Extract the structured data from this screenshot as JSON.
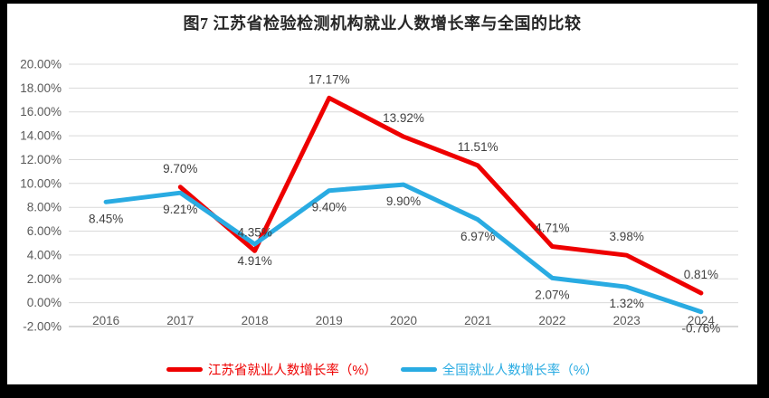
{
  "title": "图7  江苏省检验检测机构就业人数增长率与全国的比较",
  "colors": {
    "background": "#ffffff",
    "frame": "#000000",
    "gridline": "#D9D9D9",
    "axis_line": "#BFBFBF",
    "tick_label": "#595959",
    "data_label": "#3F3F3F",
    "jiangsu_red": "#EE0000",
    "national_blue": "#29ABE2"
  },
  "chart_data": {
    "type": "line",
    "title": "图7  江苏省检验检测机构就业人数增长率与全国的比较",
    "categories": [
      "2016",
      "2017",
      "2018",
      "2019",
      "2020",
      "2021",
      "2022",
      "2023",
      "2024"
    ],
    "series": [
      {
        "name": "江苏省就业人数增长率（%）",
        "color": "#EE0000",
        "values": [
          null,
          9.7,
          4.35,
          17.17,
          13.92,
          11.51,
          4.71,
          3.98,
          0.81
        ],
        "labels": [
          "",
          "9.70%",
          "4.35%",
          "17.17%",
          "13.92%",
          "11.51%",
          "4.71%",
          "3.98%",
          "0.81%"
        ],
        "label_side": "above"
      },
      {
        "name": "全国就业人数增长率（%）",
        "color": "#29ABE2",
        "values": [
          8.45,
          9.21,
          4.91,
          9.4,
          9.9,
          6.97,
          2.07,
          1.32,
          -0.76
        ],
        "labels": [
          "8.45%",
          "9.21%",
          "4.91%",
          "9.40%",
          "9.90%",
          "6.97%",
          "2.07%",
          "1.32%",
          "-0.76%"
        ],
        "label_side": "below"
      }
    ],
    "xlabel": "",
    "ylabel": "",
    "y_axis": {
      "min": -2,
      "max": 20,
      "step": 2,
      "tick_labels": [
        "20.00%",
        "18.00%",
        "16.00%",
        "14.00%",
        "12.00%",
        "10.00%",
        "8.00%",
        "6.00%",
        "4.00%",
        "2.00%",
        "0.00%",
        "-2.00%"
      ]
    },
    "grid": true,
    "data_labels": true,
    "legend_position": "bottom"
  }
}
